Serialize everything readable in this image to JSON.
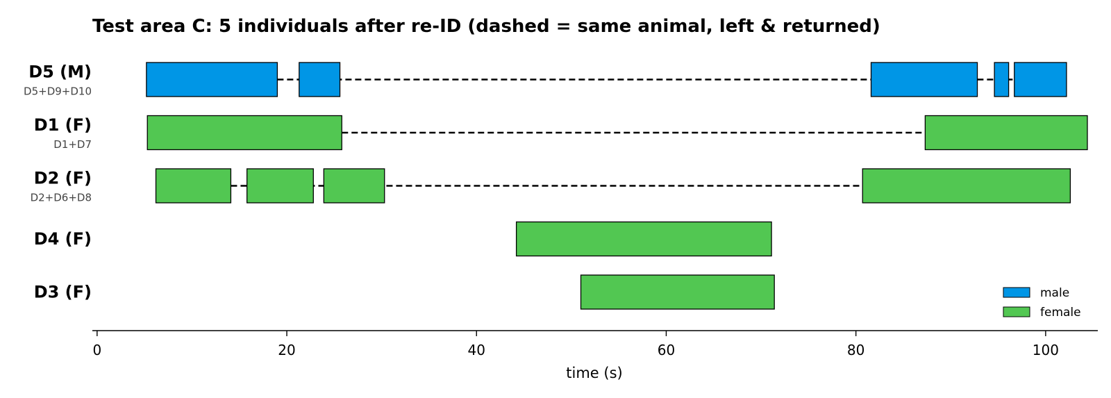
{
  "chart_data": {
    "type": "timeline",
    "title": "Test area C: 5 individuals after re-ID  (dashed = same animal, left & returned)",
    "xlabel": "time (s)",
    "xlim": [
      -0.5,
      105.5
    ],
    "xticks": [
      0,
      20,
      40,
      60,
      80,
      100
    ],
    "colors": {
      "male": "#0096e6",
      "female": "#52c752"
    },
    "legend": {
      "placement": "lower-right",
      "entries": [
        {
          "label": "male",
          "sex": "male"
        },
        {
          "label": "female",
          "sex": "female"
        }
      ]
    },
    "rows": [
      {
        "label": "D5 (M)",
        "sub": "D5+D9+D10",
        "sex": "male",
        "segments": [
          [
            5.2,
            19.0
          ],
          [
            21.3,
            25.6
          ],
          [
            81.6,
            92.8
          ],
          [
            94.6,
            96.1
          ],
          [
            96.7,
            102.2
          ]
        ]
      },
      {
        "label": "D1 (F)",
        "sub": "D1+D7",
        "sex": "female",
        "segments": [
          [
            5.3,
            25.8
          ],
          [
            87.3,
            104.4
          ]
        ]
      },
      {
        "label": "D2 (F)",
        "sub": "D2+D6+D8",
        "sex": "female",
        "segments": [
          [
            6.2,
            14.1
          ],
          [
            15.8,
            22.8
          ],
          [
            23.9,
            30.3
          ],
          [
            80.7,
            102.6
          ]
        ]
      },
      {
        "label": "D4 (F)",
        "sub": "",
        "sex": "female",
        "segments": [
          [
            44.2,
            71.1
          ]
        ]
      },
      {
        "label": "D3 (F)",
        "sub": "",
        "sex": "female",
        "segments": [
          [
            51.0,
            71.4
          ]
        ]
      }
    ]
  }
}
